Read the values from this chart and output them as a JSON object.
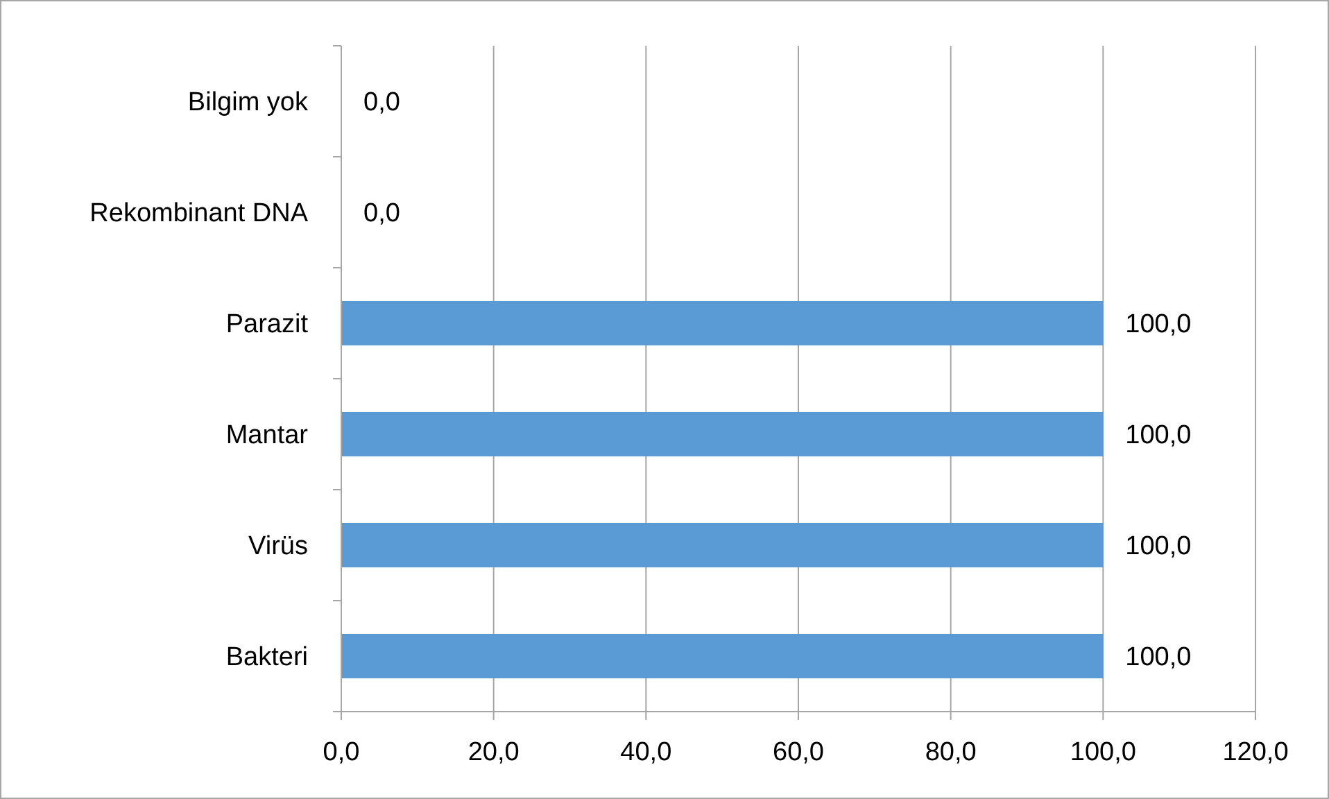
{
  "chart_data": {
    "type": "bar",
    "orientation": "horizontal",
    "categories": [
      "Bilgim yok",
      "Rekombinant DNA",
      "Parazit",
      "Mantar",
      "Virüs",
      "Bakteri"
    ],
    "values": [
      0,
      0,
      100,
      100,
      100,
      100
    ],
    "color": "#5b9bd5",
    "value_labels": [
      "0,0",
      "0,0",
      "100,0",
      "100,0",
      "100,0",
      "100,0"
    ],
    "xlim": [
      0,
      120
    ],
    "xticks": [
      {
        "value": 0,
        "label": "0,0"
      },
      {
        "value": 20,
        "label": "20,0"
      },
      {
        "value": 40,
        "label": "40,0"
      },
      {
        "value": 60,
        "label": "60,0"
      },
      {
        "value": 80,
        "label": "80,0"
      },
      {
        "value": 100,
        "label": "100,0"
      },
      {
        "value": 120,
        "label": "120,0"
      }
    ],
    "grid": "x"
  }
}
